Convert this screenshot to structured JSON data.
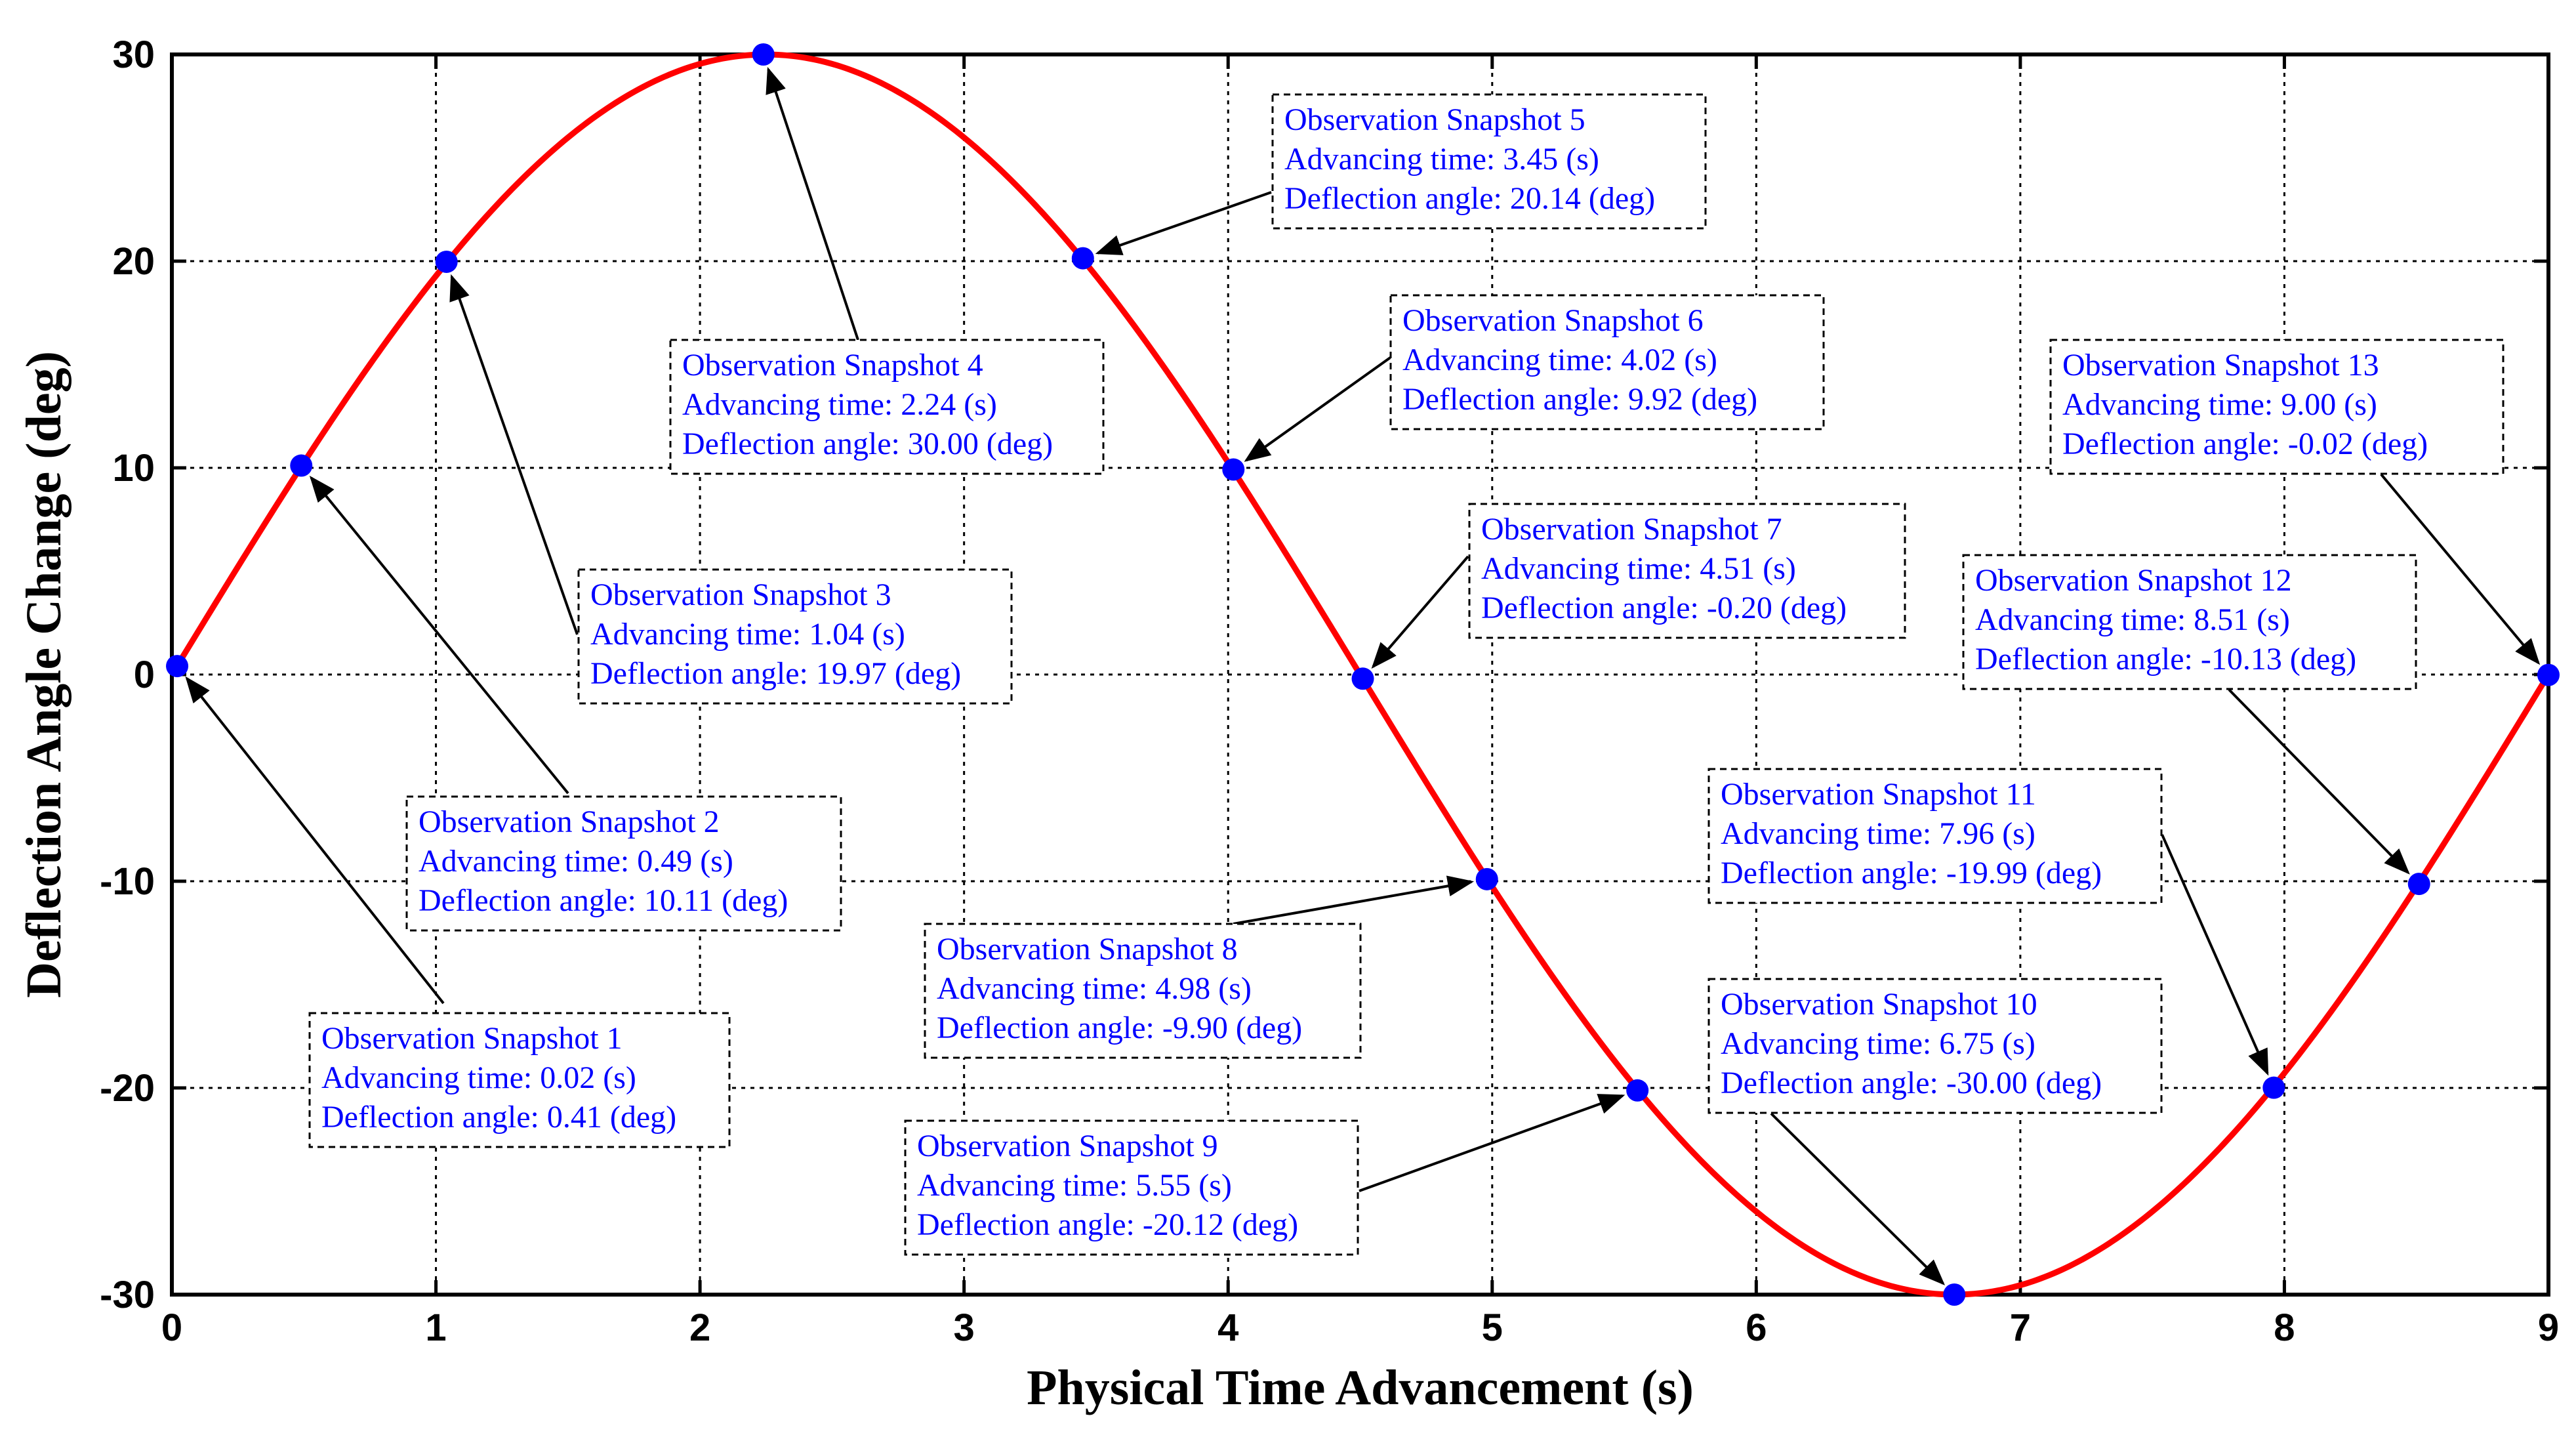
{
  "chart_data": {
    "type": "line",
    "title": "",
    "xlabel": "Physical Time Advancement (s)",
    "ylabel": "Deflection Angle Change (deg)",
    "xlim": [
      0,
      9
    ],
    "ylim": [
      -30,
      30
    ],
    "xticks": [
      0,
      1,
      2,
      3,
      4,
      5,
      6,
      7,
      8,
      9
    ],
    "xtick_labels": [
      "0",
      "1",
      "2",
      "3",
      "4",
      "5",
      "6",
      "7",
      "8",
      "9"
    ],
    "yticks": [
      30,
      20,
      10,
      0,
      -10,
      -20,
      -30
    ],
    "ytick_labels": [
      "30",
      "20",
      "10",
      "0",
      "-10",
      "-20",
      "-30"
    ],
    "grid": true,
    "curve": {
      "name": "Deflection angle",
      "amplitude": 30,
      "period": 9,
      "color": "#ff0000"
    },
    "markers": {
      "color": "#0000ff",
      "x": [
        0.02,
        0.49,
        1.04,
        2.24,
        3.45,
        4.02,
        4.51,
        4.98,
        5.55,
        6.75,
        7.96,
        8.51,
        9.0
      ],
      "y": [
        0.41,
        10.11,
        19.97,
        30.0,
        20.14,
        9.92,
        -0.2,
        -9.9,
        -20.12,
        -30.0,
        -19.99,
        -10.13,
        -0.02
      ]
    },
    "annotations": [
      {
        "title": "Observation Snapshot 1",
        "time": "Advancing time: 0.02 (s)",
        "angle": "Deflection angle: 0.41 (deg)"
      },
      {
        "title": "Observation Snapshot 2",
        "time": "Advancing time: 0.49 (s)",
        "angle": "Deflection angle: 10.11 (deg)"
      },
      {
        "title": "Observation Snapshot 3",
        "time": "Advancing time: 1.04 (s)",
        "angle": "Deflection angle: 19.97 (deg)"
      },
      {
        "title": "Observation Snapshot 4",
        "time": "Advancing time: 2.24 (s)",
        "angle": "Deflection angle: 30.00 (deg)"
      },
      {
        "title": "Observation Snapshot 5",
        "time": "Advancing time: 3.45 (s)",
        "angle": "Deflection angle: 20.14 (deg)"
      },
      {
        "title": "Observation Snapshot 6",
        "time": "Advancing time: 4.02 (s)",
        "angle": "Deflection angle: 9.92 (deg)"
      },
      {
        "title": "Observation Snapshot 7",
        "time": "Advancing time: 4.51 (s)",
        "angle": "Deflection angle: -0.20 (deg)"
      },
      {
        "title": "Observation Snapshot 8",
        "time": "Advancing time: 4.98 (s)",
        "angle": "Deflection angle: -9.90 (deg)"
      },
      {
        "title": "Observation Snapshot 9",
        "time": "Advancing time: 5.55 (s)",
        "angle": "Deflection angle: -20.12 (deg)"
      },
      {
        "title": "Observation Snapshot 10",
        "time": "Advancing time: 6.75 (s)",
        "angle": "Deflection angle: -30.00 (deg)"
      },
      {
        "title": "Observation Snapshot 11",
        "time": "Advancing time: 7.96 (s)",
        "angle": "Deflection angle: -19.99 (deg)"
      },
      {
        "title": "Observation Snapshot 12",
        "time": "Advancing time: 8.51 (s)",
        "angle": "Deflection angle: -10.13 (deg)"
      },
      {
        "title": "Observation Snapshot 13",
        "time": "Advancing time: 9.00 (s)",
        "angle": "Deflection angle: -0.02 (deg)"
      }
    ],
    "annotation_text_color": "#0000ff"
  }
}
